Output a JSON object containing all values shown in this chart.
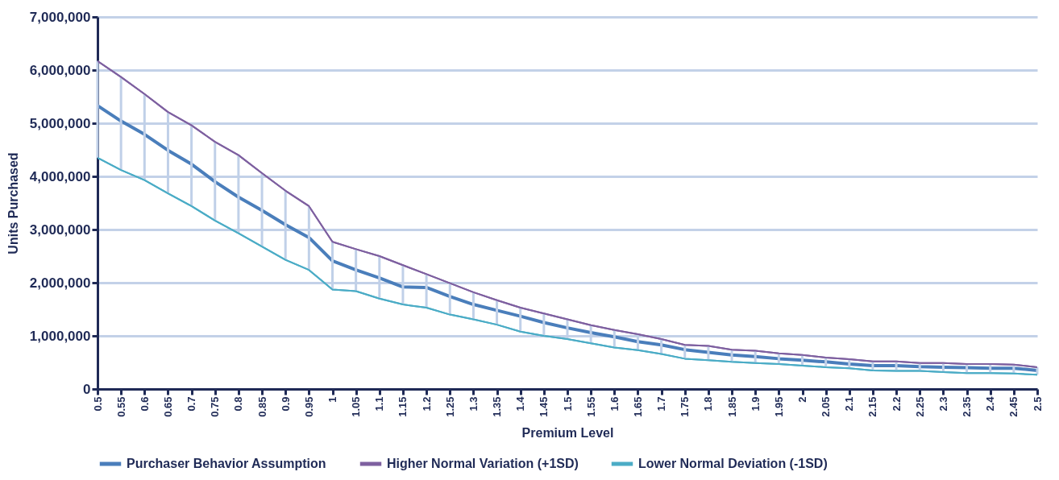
{
  "chart_data": {
    "type": "line",
    "xlabel": "Premium Level",
    "ylabel": "Units Purchased",
    "categories": [
      "0.5",
      "0.55",
      "0.6",
      "0.65",
      "0.7",
      "0.75",
      "0.8",
      "0.85",
      "0.9",
      "0.95",
      "1",
      "1.05",
      "1.1",
      "1.15",
      "1.2",
      "1.25",
      "1.3",
      "1.35",
      "1.4",
      "1.45",
      "1.5",
      "1.55",
      "1.6",
      "1.65",
      "1.7",
      "1.75",
      "1.8",
      "1.85",
      "1.9",
      "1.95",
      "2",
      "2.05",
      "2.1",
      "2.15",
      "2.2",
      "2.25",
      "2.3",
      "2.35",
      "2.4",
      "2.45",
      "2.5"
    ],
    "series": [
      {
        "name": "Purchaser Behavior Assumption",
        "color": "#4a7ebb",
        "values": [
          5330000,
          5040000,
          4790000,
          4490000,
          4230000,
          3900000,
          3610000,
          3360000,
          3090000,
          2850000,
          2410000,
          2240000,
          2090000,
          1920000,
          1910000,
          1740000,
          1590000,
          1480000,
          1370000,
          1250000,
          1150000,
          1060000,
          980000,
          890000,
          830000,
          740000,
          690000,
          640000,
          610000,
          570000,
          540000,
          510000,
          470000,
          440000,
          440000,
          420000,
          410000,
          400000,
          390000,
          390000,
          350000
        ],
        "errors": [
          [
            4350000,
            6170000
          ],
          [
            4120000,
            5870000
          ],
          [
            3930000,
            5550000
          ],
          [
            3680000,
            5210000
          ],
          [
            3440000,
            4960000
          ],
          [
            3170000,
            4650000
          ],
          [
            2930000,
            4400000
          ],
          [
            2680000,
            4060000
          ],
          [
            2430000,
            3730000
          ],
          [
            2240000,
            3440000
          ],
          [
            1870000,
            2770000
          ],
          [
            1840000,
            2630000
          ],
          [
            1700000,
            2500000
          ],
          [
            1590000,
            2330000
          ],
          [
            1530000,
            2160000
          ],
          [
            1400000,
            1990000
          ],
          [
            1310000,
            1820000
          ],
          [
            1210000,
            1670000
          ],
          [
            1080000,
            1530000
          ],
          [
            1000000,
            1420000
          ],
          [
            940000,
            1310000
          ],
          [
            860000,
            1200000
          ],
          [
            780000,
            1110000
          ],
          [
            730000,
            1030000
          ],
          [
            660000,
            940000
          ],
          [
            570000,
            830000
          ],
          [
            540000,
            810000
          ],
          [
            510000,
            740000
          ],
          [
            490000,
            720000
          ],
          [
            470000,
            670000
          ],
          [
            440000,
            640000
          ],
          [
            410000,
            590000
          ],
          [
            390000,
            560000
          ],
          [
            350000,
            520000
          ],
          [
            340000,
            520000
          ],
          [
            340000,
            490000
          ],
          [
            320000,
            490000
          ],
          [
            300000,
            470000
          ],
          [
            300000,
            470000
          ],
          [
            290000,
            460000
          ],
          [
            270000,
            410000
          ]
        ]
      },
      {
        "name": "Higher Normal Variation (+1SD)",
        "color": "#7e60a0",
        "values": [
          6170000,
          5870000,
          5550000,
          5210000,
          4960000,
          4650000,
          4400000,
          4060000,
          3730000,
          3440000,
          2770000,
          2630000,
          2500000,
          2330000,
          2160000,
          1990000,
          1820000,
          1670000,
          1530000,
          1420000,
          1310000,
          1200000,
          1110000,
          1030000,
          940000,
          830000,
          810000,
          740000,
          720000,
          670000,
          640000,
          590000,
          560000,
          520000,
          520000,
          490000,
          490000,
          470000,
          470000,
          460000,
          410000
        ]
      },
      {
        "name": "Lower Normal Deviation (-1SD)",
        "color": "#4bacc6",
        "values": [
          4350000,
          4120000,
          3930000,
          3680000,
          3440000,
          3170000,
          2930000,
          2680000,
          2430000,
          2240000,
          1870000,
          1840000,
          1700000,
          1590000,
          1530000,
          1400000,
          1310000,
          1210000,
          1080000,
          1000000,
          940000,
          860000,
          780000,
          730000,
          660000,
          570000,
          540000,
          510000,
          490000,
          470000,
          440000,
          410000,
          390000,
          350000,
          340000,
          340000,
          320000,
          300000,
          300000,
          290000,
          270000
        ]
      }
    ],
    "ylim": [
      0,
      7000000
    ],
    "yticks": [
      0,
      {
        "value": 1000000,
        "label": "1,000,000"
      },
      {
        "value": 2000000,
        "label": "2,000,000"
      },
      {
        "value": 3000000,
        "label": "3,000,000"
      },
      {
        "value": 4000000,
        "label": "4,000,000"
      },
      {
        "value": 5000000,
        "label": "5,000,000"
      },
      {
        "value": 6000000,
        "label": "6,000,000"
      },
      {
        "value": 7000000,
        "label": "7,000,000"
      }
    ],
    "grid": "y",
    "legend": "bottom",
    "marker": "none",
    "line_style": "solid"
  }
}
